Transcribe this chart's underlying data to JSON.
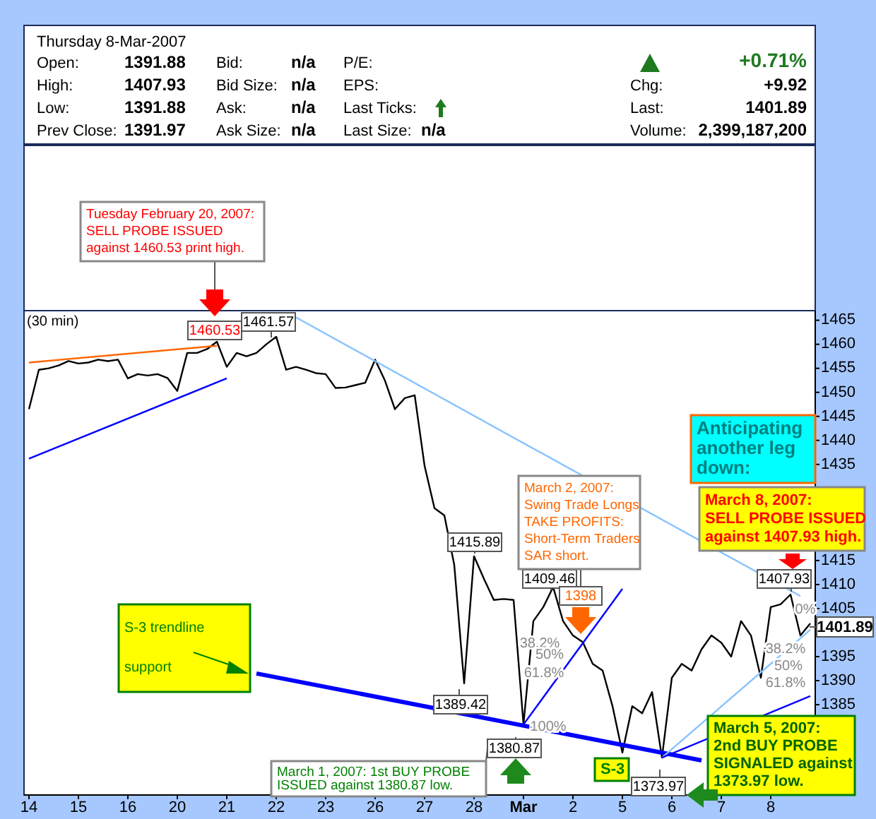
{
  "chart_data": [
    {
      "type": "other",
      "annotations": [
        "Thursday  8-Mar-2007",
        "Open:",
        "1391.88",
        "High:",
        "1407.93",
        "Low:",
        "1391.88",
        "Prev Close:",
        "1391.97",
        "Bid:",
        "n/a",
        "Bid Size:",
        "n/a",
        "Ask:",
        "n/a",
        "Ask Size:",
        "n/a",
        "P/E:",
        "EPS:",
        "Last Ticks:",
        "Last Size:",
        "n/a",
        "+0.71%",
        "Chg:",
        "+9.92",
        "Last:",
        "1401.89",
        "Volume:",
        "2,399,187,200"
      ]
    },
    {
      "type": "line",
      "categories": [
        "14",
        null,
        null,
        null,
        null,
        "15",
        null,
        null,
        null,
        null,
        "16",
        null,
        null,
        null,
        null,
        "20",
        null,
        null,
        null,
        null,
        "21",
        null,
        null,
        null,
        null,
        "22",
        null,
        null,
        null,
        null,
        "23",
        null,
        null,
        null,
        null,
        "26",
        null,
        null,
        null,
        null,
        "27",
        null,
        null,
        null,
        null,
        "28",
        null,
        null,
        null,
        null,
        "Mar",
        null,
        null,
        null,
        null,
        "2",
        null,
        null,
        null,
        null,
        "5",
        null,
        null,
        null,
        null,
        "6",
        null,
        null,
        null,
        null,
        "7",
        null,
        null,
        null,
        null,
        "8",
        null,
        null,
        null,
        null
      ],
      "series": [
        {
          "color": "#000000",
          "values": [
            1446.5,
            1454.7,
            1455,
            1455.6,
            1456.5,
            1456,
            1456.2,
            1456.8,
            1456.5,
            1456.8,
            1452.9,
            1453.8,
            1453.5,
            1453.8,
            1453,
            1450.3,
            1458.2,
            1458.2,
            1459,
            1460.53,
            1455.3,
            1458.2,
            1457.5,
            1458.2,
            1460,
            1461.57,
            1454.7,
            1455.3,
            1454.7,
            1454,
            1453.8,
            1450.9,
            1451,
            1451.5,
            1452,
            1456.8,
            1452.4,
            1446.5,
            1448.8,
            1449.4,
            1434.7,
            1425.9,
            1424.4,
            1414.1,
            1389.42,
            1415.89,
            1411.2,
            1406.8,
            1407,
            1406.8,
            1380.87,
            1402.4,
            1405.3,
            1409.46,
            1402.4,
            1399.4,
            1398,
            1393.5,
            1392.1,
            1384.7,
            1375,
            1384.7,
            1383.2,
            1387.6,
            1373.97,
            1390.6,
            1393.5,
            1392.1,
            1396.5,
            1399.4,
            1397.9,
            1395,
            1402.4,
            1399.4,
            1390.6,
            1405.3,
            1405.9,
            1407.93,
            1399.4,
            1401.89
          ]
        },
        {
          "color": "#ff6600",
          "values": [
            1456.2,
            null,
            null,
            null,
            null,
            null,
            null,
            null,
            null,
            null,
            null,
            null,
            null,
            null,
            null,
            null,
            null,
            null,
            null,
            1459.7,
            null,
            null,
            null,
            null,
            null,
            null,
            null,
            null,
            null,
            null,
            null,
            null,
            null,
            null,
            null,
            null,
            null,
            null,
            null,
            null,
            null,
            null,
            null,
            null,
            null,
            null,
            null,
            null,
            null,
            null,
            null,
            null,
            null,
            null,
            null,
            null,
            null,
            null,
            null,
            null,
            null,
            null,
            null,
            null,
            null,
            null,
            null,
            null,
            null,
            null,
            null,
            null,
            null,
            null,
            null,
            null,
            null,
            null,
            null,
            null
          ]
        },
        {
          "color": "#0000ff",
          "values": [
            1436.2,
            null,
            null,
            null,
            null,
            null,
            null,
            null,
            null,
            null,
            null,
            null,
            null,
            null,
            null,
            null,
            null,
            null,
            null,
            null,
            1452.9,
            null,
            null,
            null,
            null,
            null,
            null,
            null,
            null,
            null,
            null,
            null,
            null,
            null,
            null,
            null,
            null,
            null,
            null,
            null,
            null,
            null,
            null,
            null,
            null,
            null,
            null,
            null,
            null,
            null,
            null,
            null,
            null,
            null,
            null,
            null,
            null,
            null,
            null,
            null,
            null,
            null,
            null,
            null,
            null,
            null,
            null,
            null,
            null,
            null,
            null,
            null,
            null,
            null,
            null,
            null,
            null,
            null,
            null,
            null
          ]
        },
        {
          "color": "#87c3ff",
          "values": [
            null,
            null,
            null,
            null,
            null,
            null,
            null,
            null,
            null,
            null,
            null,
            null,
            null,
            null,
            null,
            null,
            null,
            null,
            null,
            null,
            null,
            null,
            null,
            null,
            null,
            null,
            null,
            1465.6,
            null,
            null,
            null,
            null,
            null,
            null,
            null,
            null,
            null,
            null,
            null,
            null,
            null,
            null,
            null,
            null,
            null,
            null,
            null,
            null,
            null,
            null,
            null,
            null,
            null,
            null,
            null,
            null,
            null,
            null,
            null,
            null,
            null,
            null,
            null,
            null,
            null,
            null,
            null,
            null,
            null,
            null,
            null,
            null,
            null,
            null,
            null,
            null,
            null,
            null,
            1407.6,
            null
          ]
        },
        {
          "color": "#0000ff",
          "values": [
            null,
            null,
            null,
            null,
            null,
            null,
            null,
            null,
            null,
            null,
            null,
            null,
            null,
            null,
            null,
            null,
            null,
            null,
            null,
            null,
            null,
            null,
            null,
            1391.5,
            null,
            null,
            null,
            null,
            null,
            null,
            null,
            null,
            null,
            null,
            null,
            null,
            null,
            null,
            null,
            null,
            null,
            null,
            null,
            null,
            null,
            null,
            null,
            null,
            null,
            null,
            null,
            null,
            null,
            null,
            null,
            null,
            null,
            null,
            null,
            null,
            null,
            null,
            null,
            null,
            null,
            null,
            null,
            null,
            1373.4,
            null,
            null,
            null,
            null,
            null,
            null,
            null,
            null,
            null,
            null,
            null
          ]
        },
        {
          "color": "#0000ff",
          "values": [
            null,
            null,
            null,
            null,
            null,
            null,
            null,
            null,
            null,
            null,
            null,
            null,
            null,
            null,
            null,
            null,
            null,
            null,
            null,
            null,
            null,
            null,
            null,
            null,
            null,
            null,
            null,
            null,
            null,
            null,
            null,
            null,
            null,
            null,
            null,
            null,
            null,
            null,
            null,
            null,
            null,
            null,
            null,
            null,
            null,
            null,
            null,
            null,
            null,
            null,
            1380.87,
            null,
            null,
            null,
            null,
            null,
            null,
            null,
            null,
            null,
            1409.1,
            null,
            null,
            null,
            null,
            null,
            null,
            null,
            null,
            null,
            null,
            null,
            null,
            null,
            null,
            null,
            null,
            null,
            null,
            null
          ]
        },
        {
          "color": "#87c3ff",
          "values": [
            null,
            null,
            null,
            null,
            null,
            null,
            null,
            null,
            null,
            null,
            null,
            null,
            null,
            null,
            null,
            null,
            null,
            null,
            null,
            null,
            null,
            null,
            null,
            null,
            null,
            null,
            null,
            null,
            null,
            null,
            null,
            null,
            null,
            null,
            null,
            null,
            null,
            null,
            null,
            null,
            null,
            null,
            null,
            null,
            null,
            null,
            null,
            null,
            null,
            null,
            null,
            null,
            null,
            null,
            null,
            null,
            null,
            null,
            null,
            null,
            null,
            null,
            null,
            null,
            1373.97,
            null,
            null,
            null,
            null,
            null,
            null,
            null,
            null,
            null,
            null,
            null,
            null,
            null,
            null,
            1400.6
          ]
        },
        {
          "color": "#0000ff",
          "values": [
            null,
            null,
            null,
            null,
            null,
            null,
            null,
            null,
            null,
            null,
            null,
            null,
            null,
            null,
            null,
            null,
            null,
            null,
            null,
            null,
            null,
            null,
            null,
            null,
            null,
            null,
            null,
            null,
            null,
            null,
            null,
            null,
            null,
            null,
            null,
            null,
            null,
            null,
            null,
            null,
            null,
            null,
            null,
            null,
            null,
            null,
            null,
            null,
            null,
            null,
            null,
            null,
            null,
            null,
            null,
            null,
            null,
            null,
            null,
            null,
            null,
            null,
            null,
            null,
            1373.97,
            null,
            null,
            null,
            null,
            null,
            null,
            null,
            null,
            null,
            null,
            null,
            null,
            null,
            null,
            1386.8
          ]
        }
      ],
      "ylim": [
        1366.2,
        1467
      ],
      "yticks": [
        1385,
        1390,
        1395,
        {
          "value": 1400,
          "label": null
        },
        1405,
        1410,
        1415,
        {
          "value": 1420,
          "label": null
        },
        {
          "value": 1425,
          "label": null
        },
        {
          "value": 1430,
          "label": null
        },
        1435,
        1440,
        1445,
        1450,
        1455,
        1460,
        1465
      ],
      "grid": false,
      "marker": "none",
      "line_style": "solid",
      "annotations": [
        "Tuesday February 20, 2007:\nSELL PROBE ISSUED\nagainst 1460.53 print high.",
        "1460.53",
        "1461.57",
        "1415.89",
        "1389.42",
        "1409.46",
        "March 2, 2007:\nSwing Trade Longs\nTAKE PROFITS:\nShort-Term Traders\nSAR short.",
        "1398",
        "1380.87",
        "March 1, 2007:  1st BUY PROBE\nISSUED against 1380.87 low.",
        "S-3 trendline\nsupport",
        "S-3",
        "1373.97",
        "March 5, 2007:\n2nd BUY PROBE\nSIGNALED against\n1373.97 low.",
        "Anticipating\nanother leg\ndown:",
        "March 8, 2007:\nSELL PROBE ISSUED\nagainst 1407.93 high.",
        "1407.93",
        "1401.89",
        "(30 min)",
        "38.2%",
        "50%",
        "61.8%",
        "100%",
        "0%",
        "38.2%",
        "50%",
        "61.8%"
      ]
    }
  ]
}
